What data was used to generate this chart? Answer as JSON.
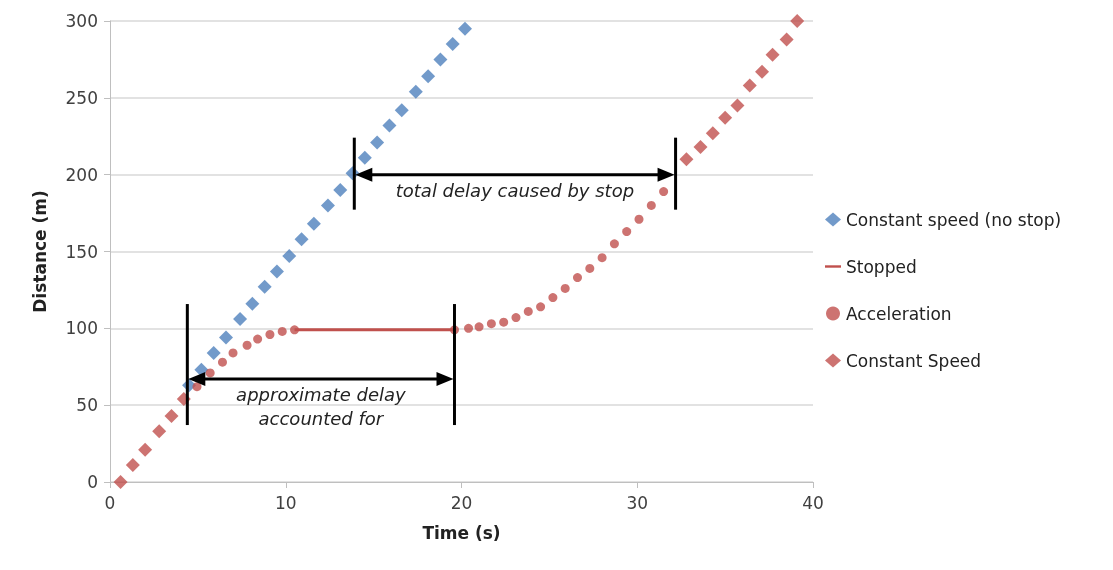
{
  "chart_data": {
    "type": "scatter",
    "xlabel": "Time (s)",
    "ylabel": "Distance (m)",
    "xlim": [
      0,
      40
    ],
    "xticks": [
      0,
      10,
      20,
      30,
      40
    ],
    "ylim": [
      0,
      300
    ],
    "yticks": [
      0,
      50,
      100,
      150,
      200,
      250,
      300
    ],
    "grid": "y",
    "legend": "right",
    "series": [
      {
        "name": "Constant speed (no stop)",
        "color": "#4f81bd",
        "marker": "diamond",
        "x": [
          4.5,
          5.2,
          5.9,
          6.6,
          7.4,
          8.1,
          8.8,
          9.5,
          10.2,
          10.9,
          11.6,
          12.4,
          13.1,
          13.8,
          14.5,
          15.2,
          15.9,
          16.6,
          17.4,
          18.1,
          18.8,
          19.5,
          20.2
        ],
        "values": [
          63,
          73,
          84,
          94,
          106,
          116,
          127,
          137,
          147,
          158,
          168,
          180,
          190,
          201,
          211,
          221,
          232,
          242,
          254,
          264,
          275,
          285,
          295
        ]
      },
      {
        "name": "Stopped",
        "type": "line",
        "color": "#c0504d",
        "marker": "none",
        "x": [
          10.5,
          19.6
        ],
        "values": [
          99,
          99
        ]
      },
      {
        "name": "Acceleration",
        "color": "#c0504d",
        "marker": "circle",
        "x": [
          4.95,
          5.7,
          6.4,
          7.0,
          7.8,
          8.4,
          9.1,
          9.8,
          10.5,
          19.6,
          20.4,
          21.0,
          21.7,
          22.4,
          23.1,
          23.8,
          24.5,
          25.2,
          25.9,
          26.6,
          27.3,
          28.0,
          28.7,
          29.4,
          30.1,
          30.8,
          31.5
        ],
        "values": [
          62,
          71,
          78,
          84,
          89,
          93,
          96,
          98,
          99,
          99,
          100,
          101,
          103,
          104,
          107,
          111,
          114,
          120,
          126,
          133,
          139,
          146,
          155,
          163,
          171,
          180,
          189
        ]
      },
      {
        "name": "Constant Speed",
        "color": "#c0504d",
        "marker": "diamond",
        "x": [
          0.6,
          1.3,
          2.0,
          2.8,
          3.5,
          4.2,
          32.8,
          33.6,
          34.3,
          35.0,
          35.7,
          36.4,
          37.1,
          37.7,
          38.5,
          39.1
        ],
        "values": [
          0,
          11,
          21,
          33,
          43,
          54,
          210,
          218,
          227,
          237,
          245,
          258,
          267,
          278,
          288,
          300
        ]
      }
    ],
    "annotations": [
      {
        "text": "total delay caused by stop",
        "x": 13.9,
        "y": 200
      },
      {
        "text": "approximate delay accounted for",
        "x": 4.4,
        "y": 67
      }
    ]
  }
}
